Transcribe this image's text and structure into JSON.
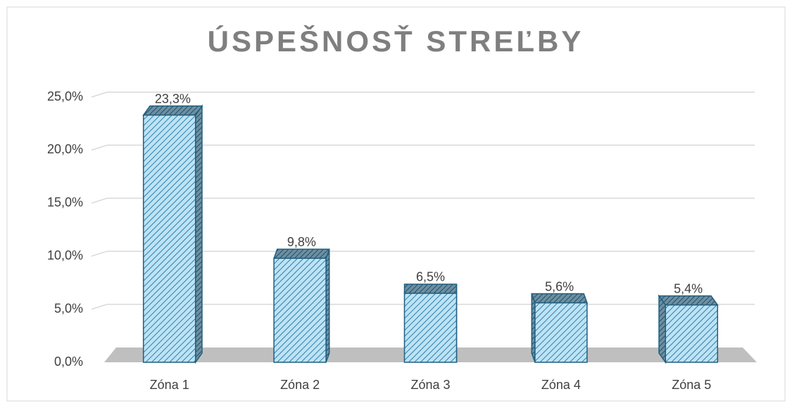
{
  "chart_data": {
    "type": "bar3d",
    "title": "ÚSPEŠNOSŤ STREĽBY",
    "categories": [
      "Zóna 1",
      "Zóna 2",
      "Zóna 3",
      "Zóna 4",
      "Zóna 5"
    ],
    "values": [
      23.3,
      9.8,
      6.5,
      5.6,
      5.4
    ],
    "value_labels": [
      "23,3%",
      "9,8%",
      "6,5%",
      "5,6%",
      "5,4%"
    ],
    "color": "#bde3f5",
    "ylim": [
      0,
      25
    ],
    "yticks": [
      {
        "value": 0,
        "label": "0,0%"
      },
      {
        "value": 5,
        "label": "5,0%"
      },
      {
        "value": 10,
        "label": "10,0%"
      },
      {
        "value": 15,
        "label": "15,0%"
      },
      {
        "value": 20,
        "label": "20,0%"
      },
      {
        "value": 25,
        "label": "25,0%"
      }
    ],
    "grid": true
  }
}
